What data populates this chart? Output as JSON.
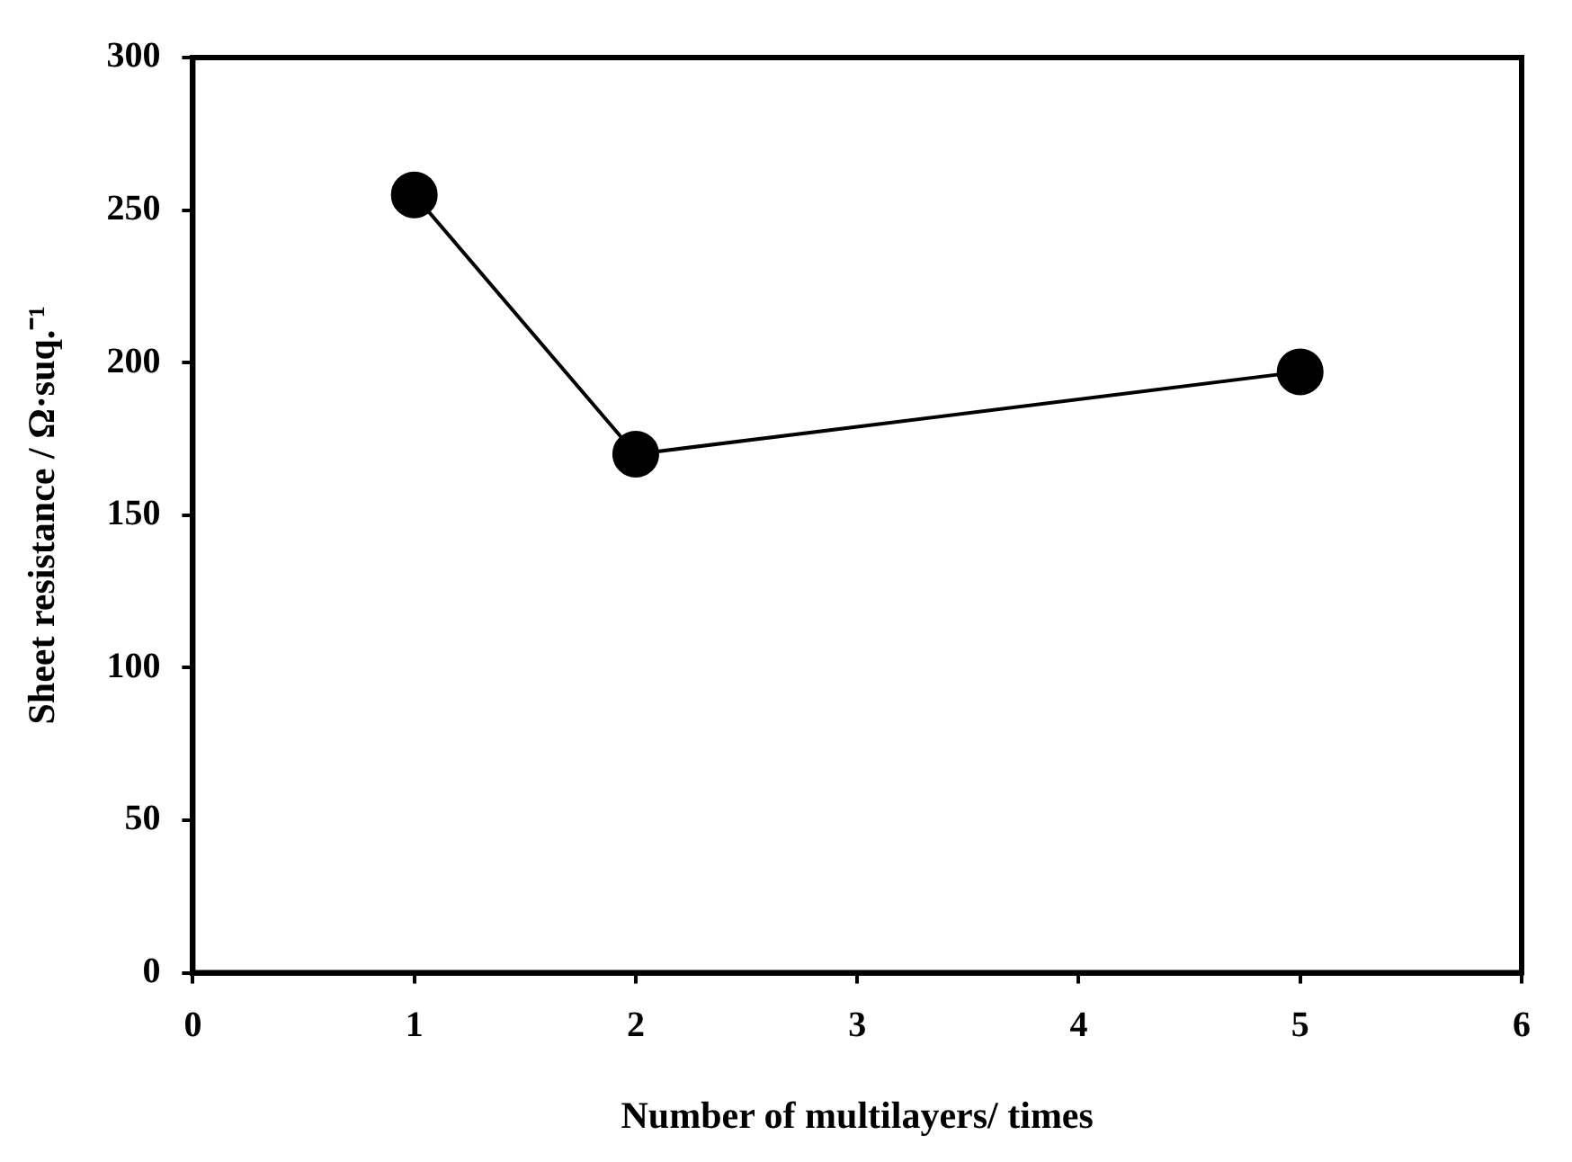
{
  "chart_data": {
    "type": "line",
    "xlabel": "Number of multilayers/ times",
    "ylabel": "Sheet resistance / Ω·suq.⁻¹",
    "x": [
      1,
      2,
      5
    ],
    "series": [
      {
        "color": "#000000",
        "values": [
          255,
          170,
          197
        ]
      }
    ],
    "xlim": [
      0,
      6
    ],
    "xticks": [
      0,
      1,
      2,
      3,
      4,
      5,
      6
    ],
    "ylim": [
      0,
      300
    ],
    "yticks": [
      0,
      50,
      100,
      150,
      200,
      250,
      300
    ],
    "grid": false,
    "legend": false,
    "marker": "circle",
    "line_style": "solid"
  }
}
